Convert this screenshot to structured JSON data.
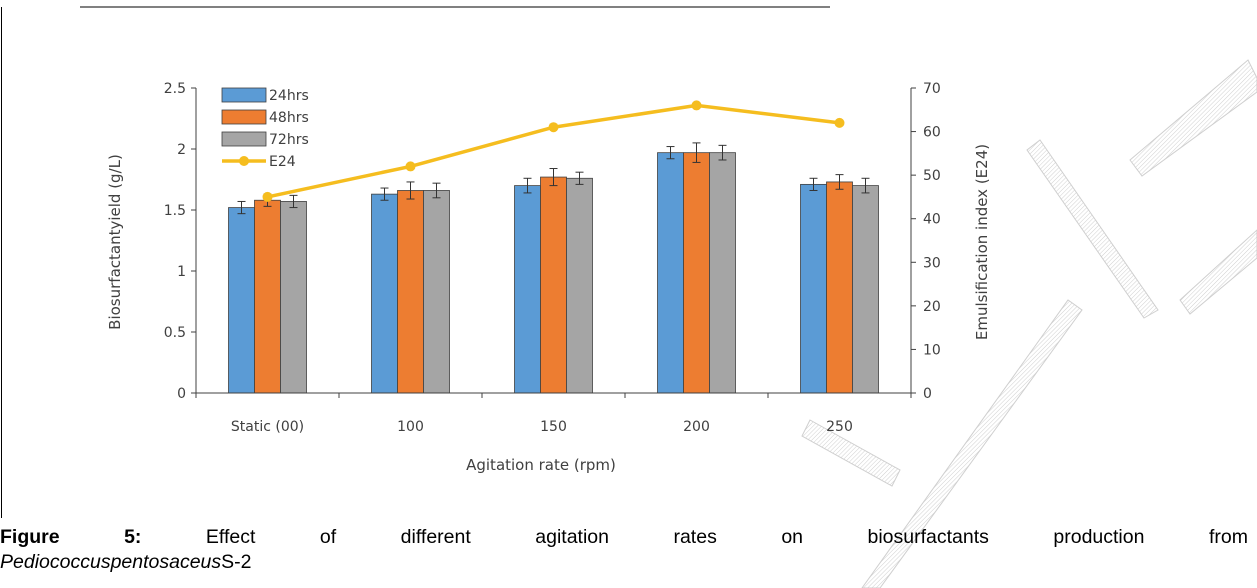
{
  "chart_data": {
    "type": "bar",
    "categories": [
      "Static (00)",
      "100",
      "150",
      "200",
      "250"
    ],
    "series": [
      {
        "name": "24hrs",
        "kind": "bar",
        "color": "#5b9bd5",
        "values": [
          1.52,
          1.63,
          1.7,
          1.97,
          1.71
        ],
        "errors": [
          0.05,
          0.05,
          0.06,
          0.05,
          0.05
        ]
      },
      {
        "name": "48hrs",
        "kind": "bar",
        "color": "#ed7d31",
        "values": [
          1.58,
          1.66,
          1.77,
          1.97,
          1.73
        ],
        "errors": [
          0.05,
          0.07,
          0.07,
          0.08,
          0.06
        ]
      },
      {
        "name": "72hrs",
        "kind": "bar",
        "color": "#a5a5a5",
        "values": [
          1.57,
          1.66,
          1.76,
          1.97,
          1.7
        ],
        "errors": [
          0.05,
          0.06,
          0.05,
          0.06,
          0.06
        ]
      },
      {
        "name": "E24",
        "kind": "line",
        "axis": "right",
        "color": "#f5bd1f",
        "values": [
          45,
          52,
          61,
          66,
          62
        ]
      }
    ],
    "xlabel": "Agitation rate (rpm)",
    "ylabel": "Biosurfactantyield (g/L)",
    "ylabel_right": "Emulsification index (E24)",
    "ylim": [
      0,
      2.5
    ],
    "ylim_right": [
      0,
      70
    ],
    "yticks": [
      "0",
      "0.5",
      "1",
      "1.5",
      "2",
      "2.5"
    ],
    "yticks_right": [
      "0",
      "10",
      "20",
      "30",
      "40",
      "50",
      "60",
      "70"
    ],
    "legend_position": "top-left",
    "grid": false
  },
  "caption": {
    "figure_label": "Figure",
    "figure_number": "5:",
    "words": [
      "Effect",
      "of",
      "different",
      "agitation",
      "rates",
      "on",
      "biosurfactants",
      "production",
      "from"
    ],
    "organism": "Pediococcuspentosaceus",
    "strain": "S-2"
  }
}
